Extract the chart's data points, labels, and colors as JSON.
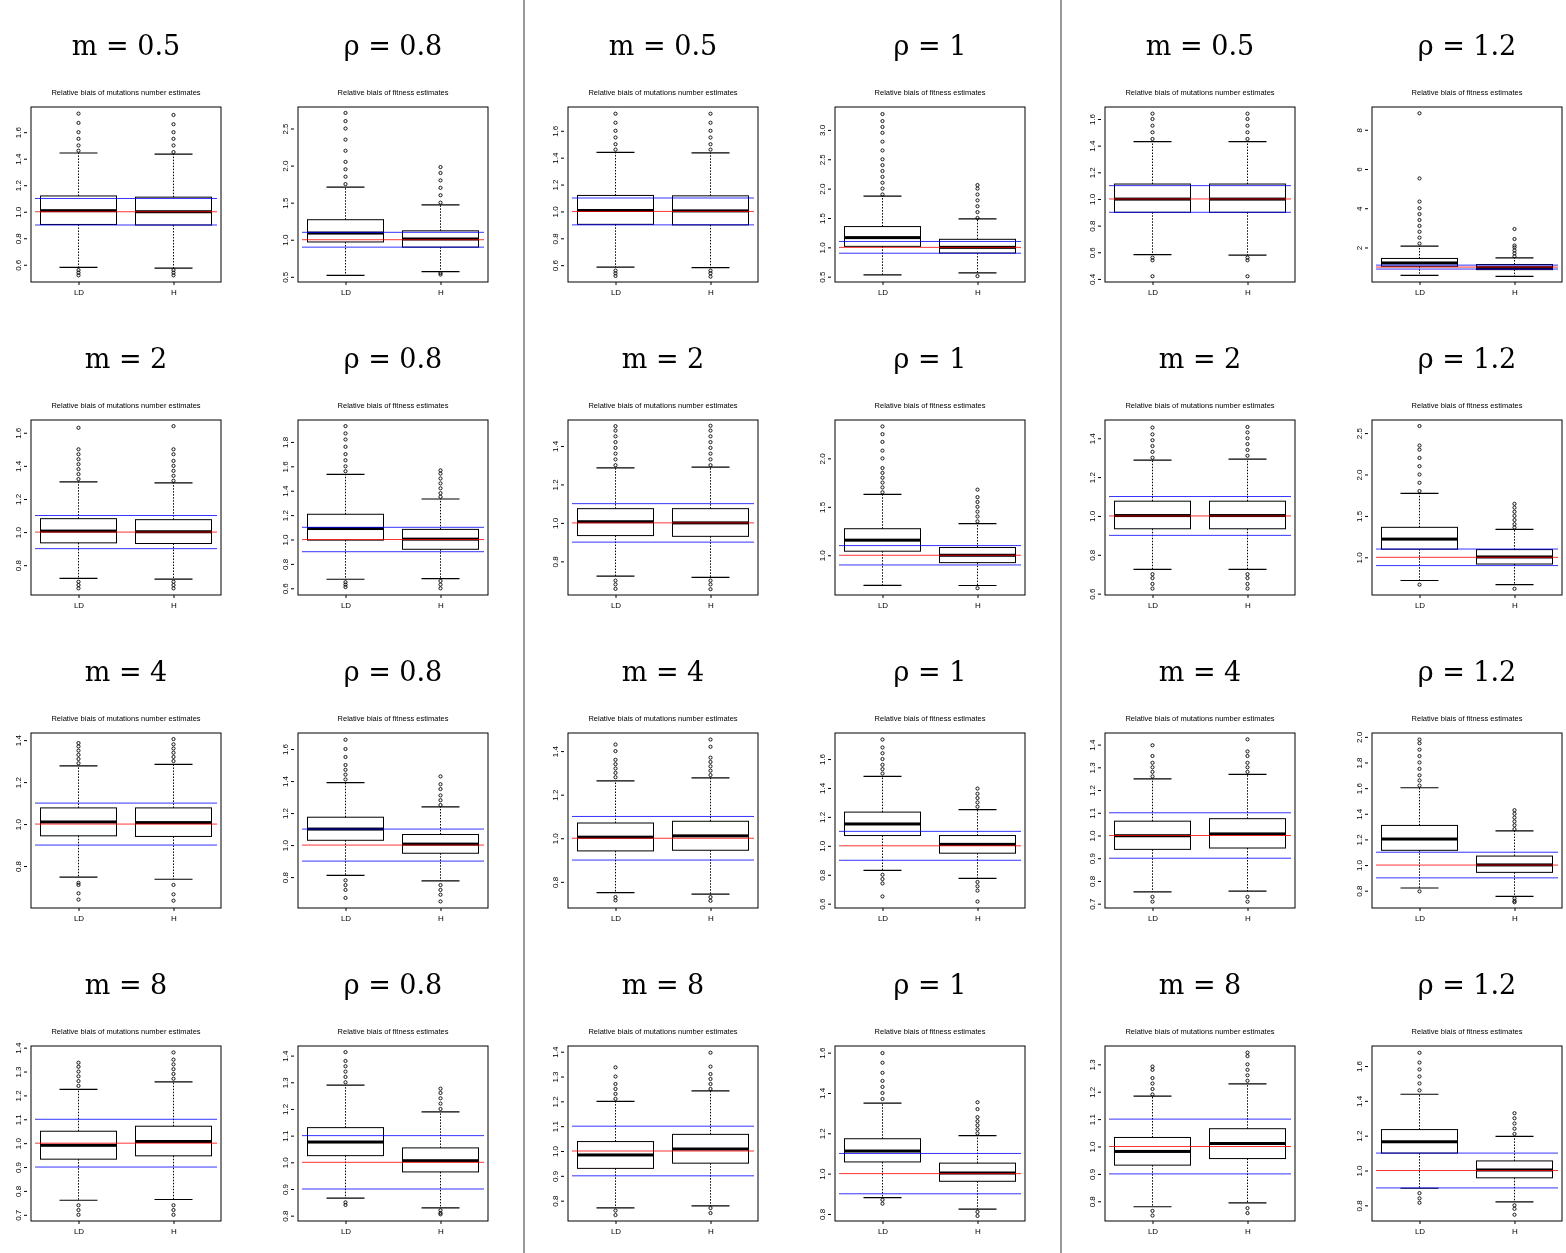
{
  "chart_data": [
    {
      "type": "box",
      "title": "Relative biais of mutations number estimates",
      "annotations": [
        "m = 0.5"
      ],
      "categories": [
        "LD",
        "H"
      ],
      "ylim": [
        0.47,
        1.79
      ],
      "yticks": [
        0.6,
        0.8,
        {
          "value": 1,
          "label": "1.0"
        },
        1.2,
        1.4,
        1.6
      ],
      "ref_lines": [
        {
          "axis": "y",
          "value": 1,
          "color": "#ff0000"
        },
        {
          "axis": "y",
          "value": 0.9,
          "color": "#0000ff"
        },
        {
          "axis": "y",
          "value": 1.1,
          "color": "#0000ff"
        }
      ],
      "boxes": [
        {
          "low": 0.58,
          "q1": 0.904,
          "median": 1.008,
          "q3": 1.119,
          "high": 1.443,
          "outliers": [
            1.46,
            1.5,
            1.55,
            1.6,
            1.67,
            1.74,
            0.56,
            0.54,
            0.52
          ]
        },
        {
          "low": 0.575,
          "q1": 0.9,
          "median": 1.0,
          "q3": 1.11,
          "high": 1.435,
          "outliers": [
            1.45,
            1.5,
            1.55,
            1.6,
            1.66,
            1.73,
            0.56,
            0.54,
            0.52
          ]
        }
      ]
    },
    {
      "type": "box",
      "title": "Relative biais of fitness estimates",
      "annotations": [
        "ρ = 0.8"
      ],
      "categories": [
        "LD",
        "H"
      ],
      "ylim": [
        0.43,
        2.79
      ],
      "yticks": [
        0.5,
        {
          "value": 1,
          "label": "1.0"
        },
        1.5,
        {
          "value": 2,
          "label": "2.0"
        },
        2.5
      ],
      "ref_lines": [
        {
          "axis": "y",
          "value": 1,
          "color": "#ff0000"
        },
        {
          "axis": "y",
          "value": 0.9,
          "color": "#0000ff"
        },
        {
          "axis": "y",
          "value": 1.1,
          "color": "#0000ff"
        }
      ],
      "boxes": [
        {
          "low": 0.52,
          "q1": 0.97,
          "median": 1.09,
          "q3": 1.27,
          "high": 1.71,
          "outliers": [
            1.75,
            1.85,
            1.95,
            2.05,
            2.2,
            2.35,
            2.5,
            2.6,
            2.71
          ]
        },
        {
          "low": 0.57,
          "q1": 0.9,
          "median": 1.01,
          "q3": 1.12,
          "high": 1.47,
          "outliers": [
            1.5,
            1.6,
            1.7,
            1.8,
            1.9,
            1.98,
            0.55,
            0.53
          ]
        }
      ]
    },
    {
      "type": "box",
      "title": "Relative biais of mutations number estimates",
      "annotations": [
        "m = 0.5"
      ],
      "categories": [
        "LD",
        "H"
      ],
      "ylim": [
        0.475,
        1.777
      ],
      "yticks": [
        0.6,
        0.8,
        {
          "value": 1,
          "label": "1.0"
        },
        1.2,
        1.4,
        1.6
      ],
      "ref_lines": [
        {
          "axis": "y",
          "value": 1,
          "color": "#ff0000"
        },
        {
          "axis": "y",
          "value": 0.9,
          "color": "#0000ff"
        },
        {
          "axis": "y",
          "value": 1.1,
          "color": "#0000ff"
        }
      ],
      "boxes": [
        {
          "low": 0.585,
          "q1": 0.904,
          "median": 1.007,
          "q3": 1.119,
          "high": 1.44,
          "outliers": [
            1.46,
            1.5,
            1.55,
            1.6,
            1.66,
            1.727,
            0.56,
            0.54,
            0.52
          ]
        },
        {
          "low": 0.582,
          "q1": 0.9,
          "median": 1.004,
          "q3": 1.116,
          "high": 1.435,
          "outliers": [
            1.46,
            1.5,
            1.55,
            1.6,
            1.66,
            1.727,
            0.56,
            0.54,
            0.515
          ]
        }
      ]
    },
    {
      "type": "box",
      "title": "Relative biais of fitness estimates",
      "annotations": [
        "ρ = 1"
      ],
      "categories": [
        "LD",
        "H"
      ],
      "ylim": [
        0.41,
        3.39
      ],
      "yticks": [
        0.5,
        {
          "value": 1,
          "label": "1.0"
        },
        1.5,
        {
          "value": 2,
          "label": "2.0"
        },
        2.5,
        {
          "value": 3,
          "label": "3.0"
        }
      ],
      "ref_lines": [
        {
          "axis": "y",
          "value": 1,
          "color": "#ff0000"
        },
        {
          "axis": "y",
          "value": 0.9,
          "color": "#0000ff"
        },
        {
          "axis": "y",
          "value": 1.1,
          "color": "#0000ff"
        }
      ],
      "boxes": [
        {
          "low": 0.53,
          "q1": 1.017,
          "median": 1.166,
          "q3": 1.354,
          "high": 1.873,
          "outliers": [
            1.9,
            2.0,
            2.1,
            2.2,
            2.3,
            2.4,
            2.5,
            2.65,
            2.8,
            2.95,
            3.05,
            3.15,
            3.27
          ]
        },
        {
          "low": 0.566,
          "q1": 0.903,
          "median": 1.0,
          "q3": 1.137,
          "high": 1.485,
          "outliers": [
            1.5,
            1.6,
            1.7,
            1.8,
            1.9,
            2.0,
            2.06,
            0.51
          ]
        }
      ]
    },
    {
      "type": "box",
      "title": "Relative biais of mutations number estimates",
      "annotations": [
        "m = 0.5"
      ],
      "categories": [
        "LD",
        "H"
      ],
      "ylim": [
        0.377,
        1.69
      ],
      "yticks": [
        0.4,
        0.6,
        0.8,
        {
          "value": 1,
          "label": "1.0"
        },
        1.2,
        1.4,
        1.6
      ],
      "ref_lines": [
        {
          "axis": "y",
          "value": 1,
          "color": "#ff0000"
        },
        {
          "axis": "y",
          "value": 0.9,
          "color": "#0000ff"
        },
        {
          "axis": "y",
          "value": 1.1,
          "color": "#0000ff"
        }
      ],
      "boxes": [
        {
          "low": 0.582,
          "q1": 0.9,
          "median": 0.999,
          "q3": 1.112,
          "high": 1.43,
          "outliers": [
            1.45,
            1.5,
            1.55,
            1.6,
            1.64,
            0.56,
            0.54,
            0.42
          ]
        },
        {
          "low": 0.579,
          "q1": 0.9,
          "median": 0.999,
          "q3": 1.112,
          "high": 1.43,
          "outliers": [
            1.45,
            1.5,
            1.55,
            1.6,
            1.64,
            0.56,
            0.54,
            0.42
          ]
        }
      ]
    },
    {
      "type": "box",
      "title": "Relative biais of fitness estimates",
      "annotations": [
        "ρ = 1.2"
      ],
      "categories": [
        "LD",
        "H"
      ],
      "ylim": [
        0.24,
        9.16
      ],
      "yticks": [
        2,
        4,
        6,
        8
      ],
      "ref_lines": [
        {
          "axis": "y",
          "value": 1,
          "color": "#ff0000"
        },
        {
          "axis": "y",
          "value": 0.9,
          "color": "#0000ff"
        },
        {
          "axis": "y",
          "value": 1.1,
          "color": "#0000ff"
        }
      ],
      "boxes": [
        {
          "low": 0.58,
          "q1": 1.04,
          "median": 1.21,
          "q3": 1.44,
          "high": 2.07,
          "outliers": [
            2.2,
            2.5,
            2.8,
            3.1,
            3.4,
            3.7,
            4.0,
            4.34,
            5.52,
            8.84
          ]
        },
        {
          "low": 0.53,
          "q1": 0.87,
          "median": 0.97,
          "q3": 1.13,
          "high": 1.47,
          "outliers": [
            1.55,
            1.7,
            1.85,
            2.0,
            2.1,
            2.43,
            2.94
          ]
        }
      ]
    },
    {
      "type": "box",
      "title": "Relative biais of mutations number estimates",
      "annotations": [
        "m = 2"
      ],
      "categories": [
        "LD",
        "H"
      ],
      "ylim": [
        0.62,
        1.677
      ],
      "yticks": [
        0.8,
        {
          "value": 1,
          "label": "1.0"
        },
        1.2,
        1.4,
        1.6
      ],
      "ref_lines": [
        {
          "axis": "y",
          "value": 1,
          "color": "#ff0000"
        },
        {
          "axis": "y",
          "value": 0.9,
          "color": "#0000ff"
        },
        {
          "axis": "y",
          "value": 1.1,
          "color": "#0000ff"
        }
      ],
      "boxes": [
        {
          "low": 0.72,
          "q1": 0.935,
          "median": 1.006,
          "q3": 1.081,
          "high": 1.303,
          "outliers": [
            1.32,
            1.35,
            1.38,
            1.41,
            1.44,
            1.47,
            1.5,
            1.63,
            0.7,
            0.68,
            0.66
          ]
        },
        {
          "low": 0.716,
          "q1": 0.931,
          "median": 1.002,
          "q3": 1.075,
          "high": 1.297,
          "outliers": [
            1.31,
            1.34,
            1.37,
            1.4,
            1.43,
            1.47,
            1.5,
            1.64,
            0.7,
            0.68,
            0.66
          ]
        }
      ]
    },
    {
      "type": "box",
      "title": "Relative biais of fitness estimates",
      "annotations": [
        "ρ = 0.8"
      ],
      "categories": [
        "LD",
        "H"
      ],
      "ylim": [
        0.545,
        1.98
      ],
      "yticks": [
        0.6,
        0.8,
        {
          "value": 1,
          "label": "1.0"
        },
        1.2,
        1.4,
        1.6,
        1.8
      ],
      "ref_lines": [
        {
          "axis": "y",
          "value": 1,
          "color": "#ff0000"
        },
        {
          "axis": "y",
          "value": 0.9,
          "color": "#0000ff"
        },
        {
          "axis": "y",
          "value": 1.1,
          "color": "#0000ff"
        }
      ],
      "boxes": [
        {
          "low": 0.674,
          "q1": 0.995,
          "median": 1.09,
          "q3": 1.207,
          "high": 1.534,
          "outliers": [
            1.56,
            1.6,
            1.65,
            1.7,
            1.76,
            1.82,
            1.87,
            1.93,
            0.65,
            0.63,
            0.61
          ]
        },
        {
          "low": 0.68,
          "q1": 0.92,
          "median": 1.003,
          "q3": 1.083,
          "high": 1.332,
          "outliers": [
            1.35,
            1.38,
            1.42,
            1.46,
            1.5,
            1.54,
            1.567,
            0.66,
            0.63,
            0.6
          ]
        }
      ]
    },
    {
      "type": "box",
      "title": "Relative biais of mutations number estimates",
      "annotations": [
        "m = 2"
      ],
      "categories": [
        "LD",
        "H"
      ],
      "ylim": [
        0.625,
        1.535
      ],
      "yticks": [
        0.8,
        {
          "value": 1,
          "label": "1.0"
        },
        1.2,
        1.4
      ],
      "ref_lines": [
        {
          "axis": "y",
          "value": 1,
          "color": "#ff0000"
        },
        {
          "axis": "y",
          "value": 0.9,
          "color": "#0000ff"
        },
        {
          "axis": "y",
          "value": 1.1,
          "color": "#0000ff"
        }
      ],
      "boxes": [
        {
          "low": 0.723,
          "q1": 0.934,
          "median": 1.006,
          "q3": 1.074,
          "high": 1.286,
          "outliers": [
            1.3,
            1.33,
            1.36,
            1.39,
            1.42,
            1.45,
            1.48,
            1.503,
            0.7,
            0.68,
            0.657
          ]
        },
        {
          "low": 0.717,
          "q1": 0.93,
          "median": 1.0,
          "q3": 1.074,
          "high": 1.29,
          "outliers": [
            1.3,
            1.33,
            1.36,
            1.39,
            1.42,
            1.45,
            1.48,
            1.505,
            0.7,
            0.68,
            0.655
          ]
        }
      ]
    },
    {
      "type": "box",
      "title": "Relative biais of fitness estimates",
      "annotations": [
        "ρ = 1"
      ],
      "categories": [
        "LD",
        "H"
      ],
      "ylim": [
        0.59,
        2.396
      ],
      "yticks": [
        {
          "value": 1,
          "label": "1.0"
        },
        1.5,
        {
          "value": 2,
          "label": "2.0"
        }
      ],
      "ref_lines": [
        {
          "axis": "y",
          "value": 1,
          "color": "#ff0000"
        },
        {
          "axis": "y",
          "value": 0.9,
          "color": "#0000ff"
        },
        {
          "axis": "y",
          "value": 1.1,
          "color": "#0000ff"
        }
      ],
      "boxes": [
        {
          "low": 0.69,
          "q1": 1.042,
          "median": 1.156,
          "q3": 1.274,
          "high": 1.628,
          "outliers": [
            1.65,
            1.7,
            1.75,
            1.8,
            1.85,
            1.9,
            2.0,
            2.08,
            2.17,
            2.25,
            2.33
          ]
        },
        {
          "low": 0.688,
          "q1": 0.924,
          "median": 1.0,
          "q3": 1.08,
          "high": 1.326,
          "outliers": [
            1.35,
            1.4,
            1.45,
            1.5,
            1.55,
            1.6,
            1.677,
            0.66
          ]
        }
      ]
    },
    {
      "type": "box",
      "title": "Relative biais of mutations number estimates",
      "annotations": [
        "m = 2"
      ],
      "categories": [
        "LD",
        "H"
      ],
      "ylim": [
        0.593,
        1.494
      ],
      "yticks": [
        0.6,
        0.8,
        {
          "value": 1,
          "label": "1.0"
        },
        1.2,
        1.4
      ],
      "ref_lines": [
        {
          "axis": "y",
          "value": 1,
          "color": "#ff0000"
        },
        {
          "axis": "y",
          "value": 0.9,
          "color": "#0000ff"
        },
        {
          "axis": "y",
          "value": 1.1,
          "color": "#0000ff"
        }
      ],
      "boxes": [
        {
          "low": 0.725,
          "q1": 0.934,
          "median": 1.002,
          "q3": 1.076,
          "high": 1.287,
          "outliers": [
            1.3,
            1.33,
            1.36,
            1.39,
            1.42,
            1.455,
            0.7,
            0.68,
            0.65,
            0.626
          ]
        },
        {
          "low": 0.725,
          "q1": 0.934,
          "median": 1.002,
          "q3": 1.076,
          "high": 1.293,
          "outliers": [
            1.31,
            1.34,
            1.37,
            1.4,
            1.43,
            1.458,
            0.7,
            0.68,
            0.65,
            0.626
          ]
        }
      ]
    },
    {
      "type": "box",
      "title": "Relative biais of fitness estimates",
      "annotations": [
        "ρ = 1.2"
      ],
      "categories": [
        "LD",
        "H"
      ],
      "ylim": [
        0.545,
        2.658
      ],
      "yticks": [
        {
          "value": 1,
          "label": "1.0"
        },
        1.5,
        {
          "value": 2,
          "label": "2.0"
        },
        2.5
      ],
      "ref_lines": [
        {
          "axis": "y",
          "value": 1,
          "color": "#ff0000"
        },
        {
          "axis": "y",
          "value": 0.9,
          "color": "#0000ff"
        },
        {
          "axis": "y",
          "value": 1.1,
          "color": "#0000ff"
        }
      ],
      "boxes": [
        {
          "low": 0.72,
          "q1": 1.098,
          "median": 1.22,
          "q3": 1.362,
          "high": 1.772,
          "outliers": [
            1.8,
            1.9,
            2.0,
            2.1,
            2.2,
            2.3,
            2.35,
            2.585,
            0.67
          ]
        },
        {
          "low": 0.67,
          "q1": 0.919,
          "median": 1.004,
          "q3": 1.093,
          "high": 1.337,
          "outliers": [
            1.36,
            1.4,
            1.45,
            1.5,
            1.55,
            1.6,
            1.646,
            0.62
          ]
        }
      ]
    },
    {
      "type": "box",
      "title": "Relative biais of mutations number estimates",
      "annotations": [
        "m = 4"
      ],
      "categories": [
        "LD",
        "H"
      ],
      "ylim": [
        0.6,
        1.434
      ],
      "yticks": [
        0.8,
        {
          "value": 1,
          "label": "1.0"
        },
        1.2,
        1.4
      ],
      "ref_lines": [
        {
          "axis": "y",
          "value": 1,
          "color": "#ff0000"
        },
        {
          "axis": "y",
          "value": 0.9,
          "color": "#0000ff"
        },
        {
          "axis": "y",
          "value": 1.1,
          "color": "#0000ff"
        }
      ],
      "boxes": [
        {
          "low": 0.747,
          "q1": 0.944,
          "median": 1.01,
          "q3": 1.077,
          "high": 1.277,
          "outliers": [
            1.29,
            1.31,
            1.33,
            1.35,
            1.37,
            1.386,
            0.72,
            0.71,
            0.67,
            0.64
          ]
        },
        {
          "low": 0.737,
          "q1": 0.941,
          "median": 1.007,
          "q3": 1.077,
          "high": 1.284,
          "outliers": [
            1.3,
            1.32,
            1.34,
            1.36,
            1.38,
            1.405,
            0.71,
            0.665,
            0.635
          ]
        }
      ]
    },
    {
      "type": "box",
      "title": "Relative biais of fitness estimates",
      "annotations": [
        "ρ = 0.8"
      ],
      "categories": [
        "LD",
        "H"
      ],
      "ylim": [
        0.607,
        1.7
      ],
      "yticks": [
        0.8,
        {
          "value": 1,
          "label": "1.0"
        },
        1.2,
        1.4,
        1.6
      ],
      "ref_lines": [
        {
          "axis": "y",
          "value": 1,
          "color": "#ff0000"
        },
        {
          "axis": "y",
          "value": 0.9,
          "color": "#0000ff"
        },
        {
          "axis": "y",
          "value": 1.1,
          "color": "#0000ff"
        }
      ],
      "boxes": [
        {
          "low": 0.811,
          "q1": 1.03,
          "median": 1.1,
          "q3": 1.174,
          "high": 1.39,
          "outliers": [
            1.41,
            1.44,
            1.47,
            1.5,
            1.55,
            1.6,
            1.658,
            0.78,
            0.75,
            0.72,
            0.67
          ]
        },
        {
          "low": 0.777,
          "q1": 0.949,
          "median": 1.006,
          "q3": 1.066,
          "high": 1.238,
          "outliers": [
            1.25,
            1.28,
            1.31,
            1.35,
            1.38,
            1.429,
            0.75,
            0.72,
            0.69,
            0.648
          ]
        }
      ]
    },
    {
      "type": "box",
      "title": "Relative biais of mutations number estimates",
      "annotations": [
        "m = 4"
      ],
      "categories": [
        "LD",
        "H"
      ],
      "ylim": [
        0.68,
        1.483
      ],
      "yticks": [
        0.8,
        {
          "value": 1,
          "label": "1.0"
        },
        1.2,
        1.4
      ],
      "ref_lines": [
        {
          "axis": "y",
          "value": 1,
          "color": "#ff0000"
        },
        {
          "axis": "y",
          "value": 0.9,
          "color": "#0000ff"
        },
        {
          "axis": "y",
          "value": 1.1,
          "color": "#0000ff"
        }
      ],
      "boxes": [
        {
          "low": 0.751,
          "q1": 0.942,
          "median": 1.005,
          "q3": 1.07,
          "high": 1.263,
          "outliers": [
            1.28,
            1.3,
            1.32,
            1.34,
            1.36,
            1.4,
            1.43,
            0.73,
            0.715
          ]
        },
        {
          "low": 0.744,
          "q1": 0.945,
          "median": 1.011,
          "q3": 1.078,
          "high": 1.277,
          "outliers": [
            1.29,
            1.31,
            1.33,
            1.35,
            1.37,
            1.42,
            1.453,
            0.73,
            0.713
          ]
        }
      ]
    },
    {
      "type": "box",
      "title": "Relative biais of fitness estimates",
      "annotations": [
        "ρ = 1"
      ],
      "categories": [
        "LD",
        "H"
      ],
      "ylim": [
        0.57,
        1.78
      ],
      "yticks": [
        0.6,
        0.8,
        {
          "value": 1,
          "label": "1.0"
        },
        1.2,
        1.4,
        1.6
      ],
      "ref_lines": [
        {
          "axis": "y",
          "value": 1,
          "color": "#ff0000"
        },
        {
          "axis": "y",
          "value": 0.9,
          "color": "#0000ff"
        },
        {
          "axis": "y",
          "value": 1.1,
          "color": "#0000ff"
        }
      ],
      "boxes": [
        {
          "low": 0.83,
          "q1": 1.071,
          "median": 1.151,
          "q3": 1.233,
          "high": 1.48,
          "outliers": [
            1.5,
            1.53,
            1.56,
            1.6,
            1.64,
            1.68,
            1.735,
            0.8,
            0.77,
            0.74,
            0.65
          ]
        },
        {
          "low": 0.775,
          "q1": 0.949,
          "median": 1.01,
          "q3": 1.071,
          "high": 1.25,
          "outliers": [
            1.27,
            1.3,
            1.33,
            1.36,
            1.396,
            0.75,
            0.72,
            0.69,
            0.615
          ]
        }
      ]
    },
    {
      "type": "box",
      "title": "Relative biais of mutations number estimates",
      "annotations": [
        "m = 4"
      ],
      "categories": [
        "LD",
        "H"
      ],
      "ylim": [
        0.681,
        1.451
      ],
      "yticks": [
        0.7,
        0.8,
        0.9,
        {
          "value": 1,
          "label": "1.0"
        },
        1.1,
        1.2,
        1.3,
        1.4
      ],
      "ref_lines": [
        {
          "axis": "y",
          "value": 1,
          "color": "#ff0000"
        },
        {
          "axis": "y",
          "value": 0.9,
          "color": "#0000ff"
        },
        {
          "axis": "y",
          "value": 1.1,
          "color": "#0000ff"
        }
      ],
      "boxes": [
        {
          "low": 0.752,
          "q1": 0.939,
          "median": 0.999,
          "q3": 1.063,
          "high": 1.249,
          "outliers": [
            1.26,
            1.28,
            1.3,
            1.32,
            1.35,
            1.397,
            0.73,
            0.709
          ]
        },
        {
          "low": 0.755,
          "q1": 0.945,
          "median": 1.007,
          "q3": 1.074,
          "high": 1.269,
          "outliers": [
            1.28,
            1.3,
            1.32,
            1.35,
            1.37,
            1.423,
            0.73,
            0.709
          ]
        }
      ]
    },
    {
      "type": "box",
      "title": "Relative biais of fitness estimates",
      "annotations": [
        "ρ = 1.2"
      ],
      "categories": [
        "LD",
        "H"
      ],
      "ylim": [
        0.665,
        2.03
      ],
      "yticks": [
        0.8,
        {
          "value": 1,
          "label": "1.0"
        },
        1.2,
        1.4,
        1.6,
        1.8,
        {
          "value": 2,
          "label": "2.0"
        }
      ],
      "ref_lines": [
        {
          "axis": "y",
          "value": 1,
          "color": "#ff0000"
        },
        {
          "axis": "y",
          "value": 0.9,
          "color": "#0000ff"
        },
        {
          "axis": "y",
          "value": 1.1,
          "color": "#0000ff"
        }
      ],
      "boxes": [
        {
          "low": 0.821,
          "q1": 1.115,
          "median": 1.203,
          "q3": 1.309,
          "high": 1.603,
          "outliers": [
            1.62,
            1.66,
            1.7,
            1.75,
            1.8,
            1.85,
            1.9,
            1.95,
            1.979,
            0.795
          ]
        },
        {
          "low": 0.755,
          "q1": 0.943,
          "median": 1.001,
          "q3": 1.07,
          "high": 1.266,
          "outliers": [
            1.28,
            1.31,
            1.34,
            1.37,
            1.4,
            1.428,
            0.74,
            0.72,
            0.71
          ]
        }
      ]
    },
    {
      "type": "box",
      "title": "Relative biais of mutations number estimates",
      "annotations": [
        "m = 8"
      ],
      "categories": [
        "LD",
        "H"
      ],
      "ylim": [
        0.674,
        1.407
      ],
      "yticks": [
        0.7,
        0.8,
        0.9,
        {
          "value": 1,
          "label": "1.0"
        },
        1.1,
        1.2,
        1.3,
        1.4
      ],
      "ref_lines": [
        {
          "axis": "y",
          "value": 1,
          "color": "#ff0000"
        },
        {
          "axis": "y",
          "value": 0.9,
          "color": "#0000ff"
        },
        {
          "axis": "y",
          "value": 1.1,
          "color": "#0000ff"
        }
      ],
      "boxes": [
        {
          "low": 0.761,
          "q1": 0.933,
          "median": 0.991,
          "q3": 1.05,
          "high": 1.225,
          "outliers": [
            1.24,
            1.26,
            1.28,
            1.3,
            1.32,
            1.337,
            0.74,
            0.72,
            0.7
          ]
        },
        {
          "low": 0.764,
          "q1": 0.947,
          "median": 1.007,
          "q3": 1.071,
          "high": 1.257,
          "outliers": [
            1.27,
            1.29,
            1.31,
            1.33,
            1.35,
            1.38,
            0.74,
            0.72,
            0.7
          ]
        }
      ]
    },
    {
      "type": "box",
      "title": "Relative biais of fitness estimates",
      "annotations": [
        "ρ = 0.8"
      ],
      "categories": [
        "LD",
        "H"
      ],
      "ylim": [
        0.78,
        1.436
      ],
      "yticks": [
        0.8,
        0.9,
        {
          "value": 1,
          "label": "1.0"
        },
        1.1,
        1.2,
        1.3,
        1.4
      ],
      "ref_lines": [
        {
          "axis": "y",
          "value": 1,
          "color": "#ff0000"
        },
        {
          "axis": "y",
          "value": 0.9,
          "color": "#0000ff"
        },
        {
          "axis": "y",
          "value": 1.1,
          "color": "#0000ff"
        }
      ],
      "boxes": [
        {
          "low": 0.866,
          "q1": 1.025,
          "median": 1.076,
          "q3": 1.13,
          "high": 1.289,
          "outliers": [
            1.3,
            1.32,
            1.34,
            1.36,
            1.38,
            1.413,
            0.85,
            0.84
          ]
        },
        {
          "low": 0.829,
          "q1": 0.964,
          "median": 1.006,
          "q3": 1.054,
          "high": 1.189,
          "outliers": [
            1.2,
            1.22,
            1.24,
            1.26,
            1.276,
            0.82,
            0.81,
            0.805
          ]
        }
      ]
    },
    {
      "type": "box",
      "title": "Relative biais of mutations number estimates",
      "annotations": [
        "m = 8"
      ],
      "categories": [
        "LD",
        "H"
      ],
      "ylim": [
        0.718,
        1.423
      ],
      "yticks": [
        0.8,
        0.9,
        {
          "value": 1,
          "label": "1.0"
        },
        1.1,
        1.2,
        1.3,
        1.4
      ],
      "ref_lines": [
        {
          "axis": "y",
          "value": 1,
          "color": "#ff0000"
        },
        {
          "axis": "y",
          "value": 0.9,
          "color": "#0000ff"
        },
        {
          "axis": "y",
          "value": 1.1,
          "color": "#0000ff"
        }
      ],
      "boxes": [
        {
          "low": 0.771,
          "q1": 0.93,
          "median": 0.984,
          "q3": 1.038,
          "high": 1.2,
          "outliers": [
            1.21,
            1.23,
            1.25,
            1.27,
            1.3,
            1.337,
            0.76,
            0.742
          ]
        },
        {
          "low": 0.779,
          "q1": 0.951,
          "median": 1.008,
          "q3": 1.067,
          "high": 1.242,
          "outliers": [
            1.25,
            1.27,
            1.29,
            1.31,
            1.34,
            1.396,
            0.77,
            0.75
          ]
        }
      ]
    },
    {
      "type": "box",
      "title": "Relative biais of fitness estimates",
      "annotations": [
        "ρ = 1"
      ],
      "categories": [
        "LD",
        "H"
      ],
      "ylim": [
        0.765,
        1.633
      ],
      "yticks": [
        0.8,
        {
          "value": 1,
          "label": "1.0"
        },
        1.2,
        1.4,
        1.6
      ],
      "ref_lines": [
        {
          "axis": "y",
          "value": 1,
          "color": "#ff0000"
        },
        {
          "axis": "y",
          "value": 0.9,
          "color": "#0000ff"
        },
        {
          "axis": "y",
          "value": 1.1,
          "color": "#0000ff"
        }
      ],
      "boxes": [
        {
          "low": 0.881,
          "q1": 1.058,
          "median": 1.112,
          "q3": 1.173,
          "high": 1.35,
          "outliers": [
            1.37,
            1.4,
            1.43,
            1.46,
            1.5,
            1.55,
            1.598,
            0.87,
            0.851
          ]
        },
        {
          "low": 0.824,
          "q1": 0.962,
          "median": 1.003,
          "q3": 1.052,
          "high": 1.188,
          "outliers": [
            1.2,
            1.22,
            1.24,
            1.26,
            1.28,
            1.32,
            1.354,
            0.81,
            0.79
          ]
        }
      ]
    },
    {
      "type": "box",
      "title": "Relative biais of mutations number estimates",
      "annotations": [
        "m = 8"
      ],
      "categories": [
        "LD",
        "H"
      ],
      "ylim": [
        0.728,
        1.367
      ],
      "yticks": [
        0.8,
        0.9,
        {
          "value": 1,
          "label": "1.0"
        },
        1.1,
        1.2,
        1.3
      ],
      "ref_lines": [
        {
          "axis": "y",
          "value": 1,
          "color": "#ff0000"
        },
        {
          "axis": "y",
          "value": 0.9,
          "color": "#0000ff"
        },
        {
          "axis": "y",
          "value": 1.1,
          "color": "#0000ff"
        }
      ],
      "boxes": [
        {
          "low": 0.78,
          "q1": 0.932,
          "median": 0.982,
          "q3": 1.033,
          "high": 1.184,
          "outliers": [
            1.19,
            1.21,
            1.23,
            1.25,
            1.28,
            1.292,
            0.765,
            0.748
          ]
        },
        {
          "low": 0.794,
          "q1": 0.956,
          "median": 1.011,
          "q3": 1.065,
          "high": 1.229,
          "outliers": [
            1.24,
            1.26,
            1.28,
            1.3,
            1.33,
            1.343,
            0.775,
            0.757
          ]
        }
      ]
    },
    {
      "type": "box",
      "title": "Relative biais of fitness estimates",
      "annotations": [
        "ρ = 1.2"
      ],
      "categories": [
        "LD",
        "H"
      ],
      "ylim": [
        0.71,
        1.715
      ],
      "yticks": [
        0.8,
        {
          "value": 1,
          "label": "1.0"
        },
        1.2,
        1.4,
        1.6
      ],
      "ref_lines": [
        {
          "axis": "y",
          "value": 1,
          "color": "#ff0000"
        },
        {
          "axis": "y",
          "value": 0.9,
          "color": "#0000ff"
        },
        {
          "axis": "y",
          "value": 1.1,
          "color": "#0000ff"
        }
      ],
      "boxes": [
        {
          "low": 0.898,
          "q1": 1.1,
          "median": 1.165,
          "q3": 1.235,
          "high": 1.438,
          "outliers": [
            1.46,
            1.5,
            1.54,
            1.58,
            1.62,
            1.676,
            0.87,
            0.84,
            0.815
          ]
        },
        {
          "low": 0.82,
          "q1": 0.958,
          "median": 1.003,
          "q3": 1.055,
          "high": 1.196,
          "outliers": [
            1.21,
            1.24,
            1.27,
            1.3,
            1.329,
            0.8,
            0.78,
            0.746
          ]
        }
      ]
    }
  ]
}
